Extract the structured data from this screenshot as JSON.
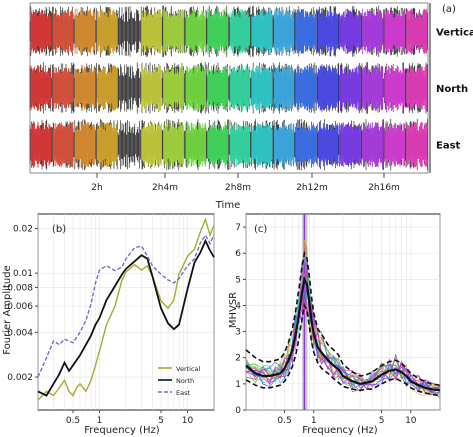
{
  "chart_data": [
    {
      "panel": "(a)",
      "type": "waveform",
      "xlabel": "Time",
      "time_ticks": [
        "2h",
        "2h4m",
        "2h8m",
        "2h12m",
        "2h16m"
      ],
      "tracks": [
        "Vertical",
        "North",
        "East"
      ],
      "window_colors": [
        "#d93636",
        "#d6503a",
        "#d88a2e",
        "#cfa22a",
        "#3a3a3a",
        "#c2c83a",
        "#9fd23a",
        "#6fd63f",
        "#3fd65a",
        "#34d4a0",
        "#2ec8c8",
        "#3aa8e0",
        "#3a6ee8",
        "#4a4ae8",
        "#7a3ae8",
        "#a83ae0",
        "#d23ad2",
        "#e03ab8"
      ]
    },
    {
      "panel": "(b)",
      "type": "line",
      "xlabel": "Frequency (Hz)",
      "ylabel": "Fourier Amplitude",
      "xscale": "log",
      "yscale": "log",
      "xlim": [
        0.2,
        20
      ],
      "ylim": [
        0.0012,
        0.025
      ],
      "x_tick_labels": [
        "0.5",
        "1",
        "5",
        "10"
      ],
      "x_ticks": [
        0.5,
        1,
        5,
        10
      ],
      "y_tick_labels": [
        "0.002",
        "0.004",
        "0.006",
        "0.008",
        "0.01",
        "0.02"
      ],
      "y_ticks": [
        0.002,
        0.004,
        0.006,
        0.008,
        0.01,
        0.02
      ],
      "legend_position": "bottom-right",
      "series": [
        {
          "name": "Vertical",
          "color": "#a8a832",
          "dash": "none",
          "x": [
            0.2,
            0.25,
            0.3,
            0.35,
            0.4,
            0.45,
            0.5,
            0.55,
            0.6,
            0.7,
            0.8,
            0.9,
            1.0,
            1.2,
            1.5,
            1.8,
            2,
            2.5,
            3,
            3.5,
            4,
            5,
            6,
            7,
            8,
            10,
            12,
            14,
            16,
            18,
            20
          ],
          "y": [
            0.0014,
            0.0016,
            0.0015,
            0.0017,
            0.0019,
            0.0016,
            0.0015,
            0.0017,
            0.0018,
            0.0016,
            0.0019,
            0.0024,
            0.003,
            0.0045,
            0.006,
            0.009,
            0.0102,
            0.0114,
            0.0105,
            0.0112,
            0.0095,
            0.0065,
            0.0058,
            0.0066,
            0.0098,
            0.013,
            0.0145,
            0.019,
            0.023,
            0.018,
            0.021
          ]
        },
        {
          "name": "North",
          "color": "#111111",
          "dash": "none",
          "x": [
            0.2,
            0.25,
            0.3,
            0.35,
            0.4,
            0.45,
            0.5,
            0.6,
            0.7,
            0.8,
            0.9,
            1.0,
            1.2,
            1.5,
            1.8,
            2,
            2.5,
            3,
            3.5,
            4,
            5,
            6,
            7,
            8,
            10,
            12,
            14,
            16,
            18,
            20
          ],
          "y": [
            0.0016,
            0.0015,
            0.0018,
            0.0021,
            0.0025,
            0.0022,
            0.0024,
            0.0028,
            0.0033,
            0.0038,
            0.0045,
            0.005,
            0.0066,
            0.0082,
            0.0098,
            0.0107,
            0.012,
            0.0132,
            0.0125,
            0.0095,
            0.0058,
            0.0046,
            0.0042,
            0.0045,
            0.0078,
            0.0118,
            0.0138,
            0.0165,
            0.0142,
            0.0128
          ]
        },
        {
          "name": "East",
          "color": "#6f6fcf",
          "dash": "4,2",
          "x": [
            0.2,
            0.25,
            0.3,
            0.35,
            0.4,
            0.5,
            0.6,
            0.7,
            0.8,
            0.9,
            1.0,
            1.2,
            1.5,
            1.8,
            2,
            2.5,
            3,
            3.5,
            4,
            5,
            6,
            7,
            8,
            10,
            12,
            14,
            16,
            18,
            20
          ],
          "y": [
            0.002,
            0.0027,
            0.0035,
            0.0033,
            0.0036,
            0.0034,
            0.004,
            0.0048,
            0.0062,
            0.0086,
            0.0105,
            0.0112,
            0.0104,
            0.011,
            0.0125,
            0.0148,
            0.0152,
            0.013,
            0.0112,
            0.0098,
            0.009,
            0.0086,
            0.0092,
            0.0112,
            0.0125,
            0.016,
            0.018,
            0.0158,
            0.0182
          ]
        }
      ]
    },
    {
      "panel": "(c)",
      "type": "line",
      "xlabel": "Frequency (Hz)",
      "ylabel": "MHVSR",
      "xscale": "log",
      "xlim": [
        0.2,
        20
      ],
      "ylim": [
        0,
        7.5
      ],
      "x_tick_labels": [
        "0.5",
        "1",
        "5",
        "10"
      ],
      "x_ticks": [
        0.5,
        1,
        5,
        10
      ],
      "y_tick_labels": [
        "0",
        "1",
        "2",
        "3",
        "4",
        "5",
        "6",
        "7"
      ],
      "y_ticks": [
        0,
        1,
        2,
        3,
        4,
        5,
        6,
        7
      ],
      "peak_band": [
        0.76,
        0.86
      ],
      "peak_line": 0.8,
      "mean": {
        "x": [
          0.2,
          0.25,
          0.3,
          0.35,
          0.4,
          0.45,
          0.5,
          0.55,
          0.6,
          0.65,
          0.7,
          0.75,
          0.8,
          0.85,
          0.9,
          0.95,
          1.0,
          1.1,
          1.2,
          1.4,
          1.6,
          1.8,
          2,
          2.5,
          3,
          3.5,
          4,
          5,
          6,
          7,
          8,
          9,
          10,
          12,
          14,
          16,
          20
        ],
        "y": [
          1.7,
          1.4,
          1.3,
          1.3,
          1.35,
          1.4,
          1.6,
          1.9,
          2.3,
          2.9,
          3.6,
          4.4,
          5.0,
          4.8,
          4.1,
          3.4,
          2.9,
          2.4,
          2.2,
          1.9,
          1.7,
          1.55,
          1.3,
          1.1,
          1.0,
          1.05,
          1.1,
          1.35,
          1.5,
          1.55,
          1.45,
          1.3,
          1.1,
          0.95,
          0.85,
          0.8,
          0.75
        ]
      },
      "std_upper": [
        2.3,
        2.0,
        1.85,
        1.85,
        1.9,
        1.95,
        2.2,
        2.6,
        3.1,
        3.8,
        4.6,
        5.4,
        6.0,
        5.8,
        5.1,
        4.3,
        3.7,
        3.1,
        2.9,
        2.5,
        2.3,
        2.1,
        1.75,
        1.45,
        1.3,
        1.35,
        1.45,
        1.7,
        1.85,
        1.9,
        1.8,
        1.6,
        1.4,
        1.2,
        1.1,
        1.0,
        0.95
      ],
      "std_lower": [
        1.15,
        0.95,
        0.85,
        0.85,
        0.9,
        0.95,
        1.1,
        1.35,
        1.65,
        2.1,
        2.7,
        3.4,
        4.0,
        3.8,
        3.2,
        2.6,
        2.2,
        1.8,
        1.6,
        1.4,
        1.2,
        1.05,
        0.9,
        0.8,
        0.75,
        0.8,
        0.8,
        1.0,
        1.15,
        1.2,
        1.1,
        1.0,
        0.85,
        0.72,
        0.65,
        0.6,
        0.55
      ]
    }
  ]
}
